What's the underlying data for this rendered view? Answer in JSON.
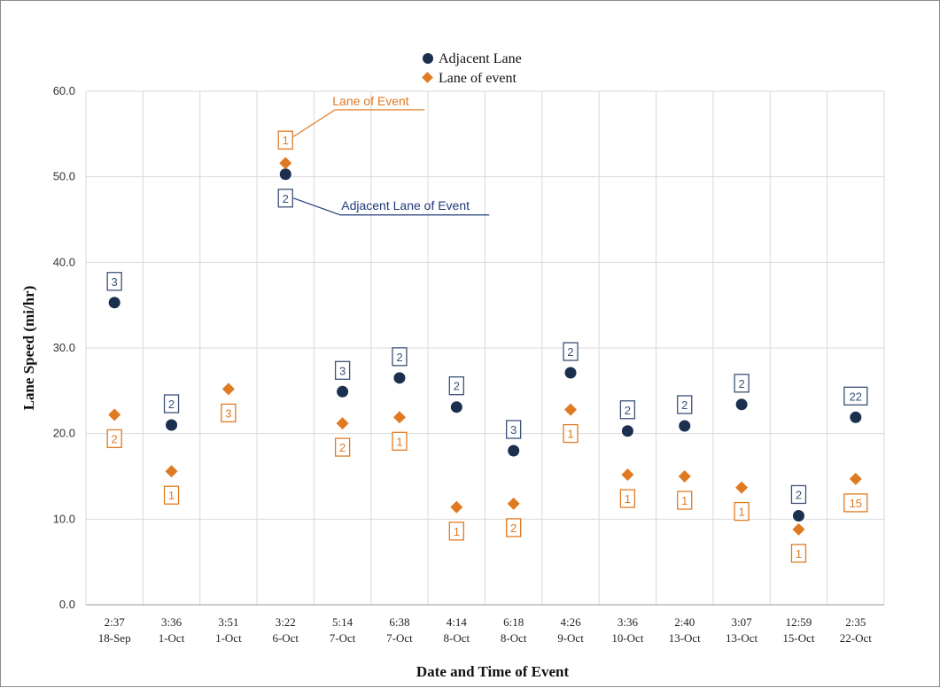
{
  "colors": {
    "adjacent": "#1b2f4f",
    "event": "#e07a22",
    "grid": "#d9d9d9",
    "axis": "#9a9a9a",
    "adjacent_label": "#3c5178",
    "annotation_adjacent": "#1f3a78"
  },
  "chart_data": {
    "type": "scatter",
    "title": "",
    "xlabel": "Date and Time of Event",
    "ylabel": "Lane Speed (mi/hr)",
    "ylim": [
      0,
      60
    ],
    "yticks": [
      "0.0",
      "10.0",
      "20.0",
      "30.0",
      "40.0",
      "50.0",
      "60.0"
    ],
    "grid": true,
    "legend_position": "top-center",
    "categories": [
      {
        "time": "2:37",
        "date": "18-Sep"
      },
      {
        "time": "3:36",
        "date": "1-Oct"
      },
      {
        "time": "3:51",
        "date": "1-Oct"
      },
      {
        "time": "3:22",
        "date": "6-Oct"
      },
      {
        "time": "5:14",
        "date": "7-Oct"
      },
      {
        "time": "6:38",
        "date": "7-Oct"
      },
      {
        "time": "4:14",
        "date": "8-Oct"
      },
      {
        "time": "6:18",
        "date": "8-Oct"
      },
      {
        "time": "4:26",
        "date": "9-Oct"
      },
      {
        "time": "3:36",
        "date": "10-Oct"
      },
      {
        "time": "2:40",
        "date": "13-Oct"
      },
      {
        "time": "3:07",
        "date": "13-Oct"
      },
      {
        "time": "12:59",
        "date": "15-Oct"
      },
      {
        "time": "2:35",
        "date": "22-Oct"
      }
    ],
    "series": [
      {
        "name": "Adjacent Lane",
        "marker": "circle",
        "values": [
          35.3,
          21.0,
          null,
          50.3,
          24.9,
          26.5,
          23.1,
          18.0,
          27.1,
          20.3,
          20.9,
          23.4,
          10.4,
          21.9
        ],
        "labels": [
          "3",
          "2",
          null,
          "2",
          "3",
          "2",
          "2",
          "3",
          "2",
          "2",
          "2",
          "2",
          "2",
          "22"
        ]
      },
      {
        "name": "Lane of event",
        "marker": "diamond",
        "values": [
          22.2,
          15.6,
          25.2,
          51.6,
          21.2,
          21.9,
          11.4,
          11.8,
          22.8,
          15.2,
          15.0,
          13.7,
          8.8,
          14.7
        ],
        "labels": [
          "2",
          "1",
          "3",
          "1",
          "2",
          "1",
          "1",
          "2",
          "1",
          "1",
          "1",
          "1",
          "1",
          "15"
        ]
      }
    ],
    "annotations": [
      {
        "text": "Lane of Event",
        "series": "Lane of event"
      },
      {
        "text": "Adjacent Lane of Event",
        "series": "Adjacent Lane"
      }
    ]
  }
}
